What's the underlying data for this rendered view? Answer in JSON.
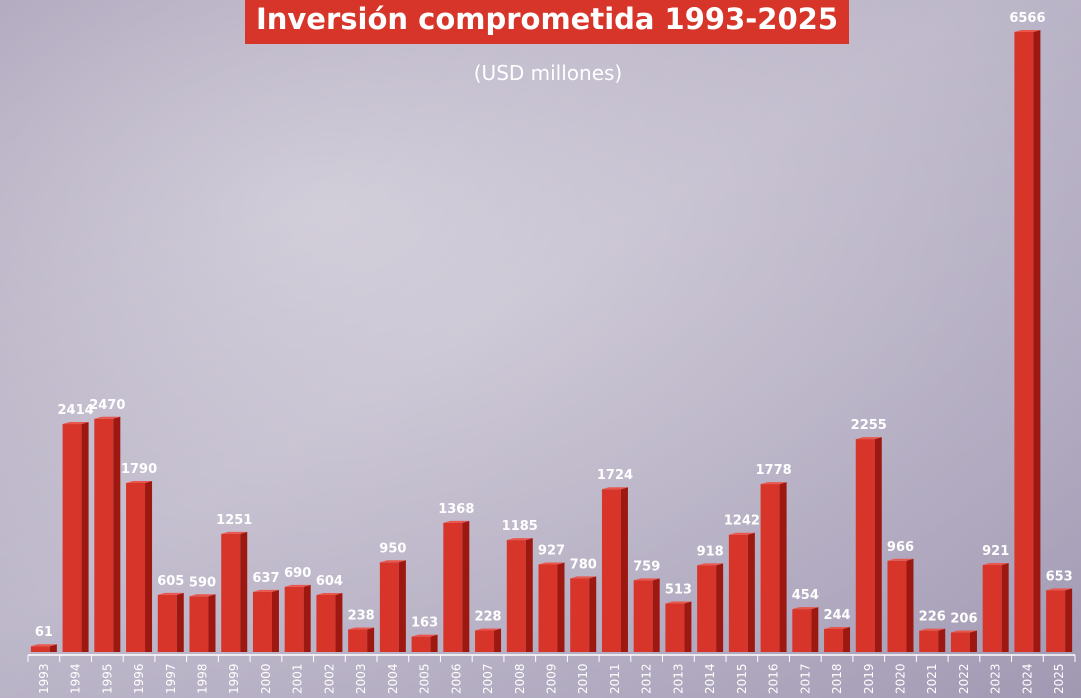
{
  "chart_data": {
    "type": "bar",
    "title": "Inversión comprometida 1993-2025",
    "subtitle": "(USD millones)",
    "categories": [
      "1993",
      "1994",
      "1995",
      "1996",
      "1997",
      "1998",
      "1999",
      "2000",
      "2001",
      "2002",
      "2003",
      "2004",
      "2005",
      "2006",
      "2007",
      "2008",
      "2009",
      "2010",
      "2011",
      "2012",
      "2013",
      "2014",
      "2015",
      "2016",
      "2017",
      "2018",
      "2019",
      "2020",
      "2021",
      "2022",
      "2023",
      "2024",
      "2025"
    ],
    "values": [
      61,
      2414,
      2470,
      1790,
      605,
      590,
      1251,
      637,
      690,
      604,
      238,
      950,
      163,
      1368,
      228,
      1185,
      927,
      780,
      1724,
      759,
      513,
      918,
      1242,
      1778,
      454,
      244,
      2255,
      966,
      226,
      206,
      921,
      6566,
      653
    ],
    "color": "#d7342a"
  }
}
